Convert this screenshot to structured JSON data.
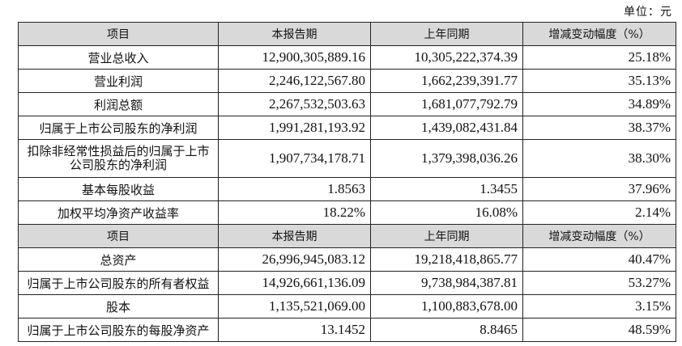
{
  "unit_label": "单位：元",
  "headers": {
    "item": "项目",
    "current": "本报告期",
    "previous": "上年同期",
    "change": "增减变动幅度（%）"
  },
  "rows_income": [
    {
      "label": "营业总收入",
      "current": "12,900,305,889.16",
      "previous": "10,305,222,374.39",
      "change": "25.18%"
    },
    {
      "label": "营业利润",
      "current": "2,246,122,567.80",
      "previous": "1,662,239,391.77",
      "change": "35.13%"
    },
    {
      "label": "利润总额",
      "current": "2,267,532,503.63",
      "previous": "1,681,077,792.79",
      "change": "34.89%"
    },
    {
      "label": "归属于上市公司股东的净利润",
      "current": "1,991,281,193.92",
      "previous": "1,439,082,431.84",
      "change": "38.37%"
    },
    {
      "label": "扣除非经常性损益后的归属于上市公司股东的净利润",
      "current": "1,907,734,178.71",
      "previous": "1,379,398,036.26",
      "change": "38.30%"
    },
    {
      "label": "基本每股收益",
      "current": "1.8563",
      "previous": "1.3455",
      "change": "37.96%"
    },
    {
      "label": "加权平均净资产收益率",
      "current": "18.22%",
      "previous": "16.08%",
      "change": "2.14%"
    }
  ],
  "rows_balance": [
    {
      "label": "总资产",
      "current": "26,996,945,083.12",
      "previous": "19,218,418,865.77",
      "change": "40.47%"
    },
    {
      "label": "归属于上市公司股东的所有者权益",
      "current": "14,926,661,136.09",
      "previous": "9,738,984,387.81",
      "change": "53.27%"
    },
    {
      "label": "股本",
      "current": "1,135,521,069.00",
      "previous": "1,100,883,678.00",
      "change": "3.15%"
    },
    {
      "label": "归属于上市公司股东的每股净资产",
      "current": "13.1452",
      "previous": "8.8465",
      "change": "48.59%"
    }
  ]
}
